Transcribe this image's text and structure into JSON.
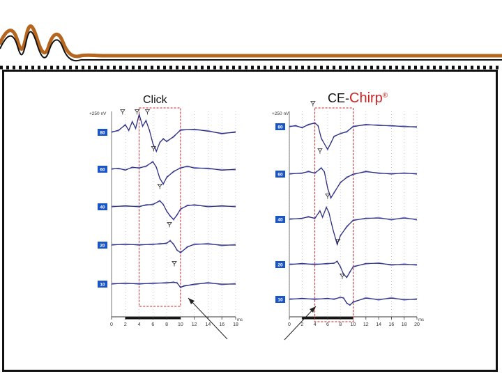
{
  "colors": {
    "accent": "#b5651d",
    "frame": "#111111",
    "trace_a": "#2b2b7a",
    "trace_b": "#7f88d8",
    "highlight": "#cc2222",
    "level_box": "#1a55c8",
    "grid": "#b8b8b8"
  },
  "decoration": {
    "logo": "wave-logo-icon"
  },
  "chart_data": [
    {
      "type": "line",
      "title": "Click",
      "scale_label": "+250 nV",
      "x_unit": "ms",
      "xlim": [
        0,
        18
      ],
      "x_ticks": [
        "0",
        "2",
        "4",
        "6",
        "8",
        "10",
        "12",
        "14",
        "16",
        "18"
      ],
      "levels": [
        "80",
        "60",
        "40",
        "20",
        "10"
      ],
      "highlight_window_ms": [
        4,
        10
      ],
      "series": [
        {
          "level": "80",
          "points": [
            [
              0,
              0
            ],
            [
              1,
              0.1
            ],
            [
              2,
              0.35
            ],
            [
              2.5,
              0.1
            ],
            [
              3,
              0.5
            ],
            [
              3.5,
              0.2
            ],
            [
              4,
              0.85
            ],
            [
              4.5,
              0.3
            ],
            [
              5,
              0.55
            ],
            [
              5.5,
              0.1
            ],
            [
              6,
              -0.55
            ],
            [
              6.5,
              -0.9
            ],
            [
              7,
              -0.5
            ],
            [
              7.5,
              -0.3
            ],
            [
              8,
              -0.45
            ],
            [
              9,
              -0.2
            ],
            [
              10,
              0.1
            ],
            [
              12,
              0.15
            ],
            [
              14,
              0.05
            ],
            [
              16,
              -0.05
            ],
            [
              18,
              0
            ]
          ],
          "peaks_ms": [
            1.6,
            3.7,
            5.2
          ]
        },
        {
          "level": "60",
          "points": [
            [
              0,
              0
            ],
            [
              1,
              0.05
            ],
            [
              2,
              -0.05
            ],
            [
              3,
              0.1
            ],
            [
              4,
              0.05
            ],
            [
              5,
              0.15
            ],
            [
              6,
              0.35
            ],
            [
              6.5,
              0.1
            ],
            [
              7,
              -0.45
            ],
            [
              7.5,
              -0.7
            ],
            [
              8,
              -0.4
            ],
            [
              9,
              -0.1
            ],
            [
              10,
              0.05
            ],
            [
              11,
              0.15
            ],
            [
              12,
              0.05
            ],
            [
              14,
              0.05
            ],
            [
              16,
              -0.05
            ],
            [
              18,
              0
            ]
          ],
          "peaks_ms": [
            6.1
          ]
        },
        {
          "level": "40",
          "points": [
            [
              0,
              0
            ],
            [
              2,
              0.05
            ],
            [
              4,
              0
            ],
            [
              5,
              0.1
            ],
            [
              6,
              0.1
            ],
            [
              7,
              0.3
            ],
            [
              7.5,
              0.1
            ],
            [
              8,
              -0.2
            ],
            [
              8.5,
              -0.45
            ],
            [
              9,
              -0.6
            ],
            [
              9.5,
              -0.4
            ],
            [
              10,
              -0.1
            ],
            [
              11,
              0.05
            ],
            [
              12,
              0.1
            ],
            [
              14,
              0
            ],
            [
              16,
              0.05
            ],
            [
              18,
              0
            ]
          ],
          "peaks_ms": [
            7.0
          ]
        },
        {
          "level": "20",
          "points": [
            [
              0,
              0
            ],
            [
              2,
              0.05
            ],
            [
              4,
              0
            ],
            [
              6,
              0.05
            ],
            [
              7,
              0.05
            ],
            [
              8,
              0.1
            ],
            [
              8.5,
              0.2
            ],
            [
              9,
              0.05
            ],
            [
              9.5,
              -0.25
            ],
            [
              10,
              -0.35
            ],
            [
              11,
              -0.1
            ],
            [
              12,
              0.05
            ],
            [
              14,
              0.05
            ],
            [
              16,
              0
            ],
            [
              18,
              0
            ]
          ],
          "peaks_ms": [
            8.4
          ]
        },
        {
          "level": "10",
          "points": [
            [
              0,
              0
            ],
            [
              2,
              0.05
            ],
            [
              4,
              0
            ],
            [
              6,
              0.05
            ],
            [
              8,
              0.05
            ],
            [
              9,
              0.1
            ],
            [
              9.5,
              0.05
            ],
            [
              10,
              -0.15
            ],
            [
              10.5,
              -0.1
            ],
            [
              12,
              0
            ],
            [
              14,
              0.05
            ],
            [
              16,
              0
            ],
            [
              18,
              0
            ]
          ],
          "peaks_ms": [
            9.1
          ]
        }
      ]
    },
    {
      "type": "line",
      "title": "CE-Chirp®",
      "title_parts": [
        "CE-",
        "Chirp",
        "®"
      ],
      "scale_label": "+250 nV",
      "x_unit": "ms",
      "xlim": [
        0,
        20
      ],
      "x_ticks": [
        "0",
        "2",
        "4",
        "6",
        "8",
        "10",
        "12",
        "14",
        "16",
        "18",
        "20"
      ],
      "levels": [
        "80",
        "60",
        "40",
        "20",
        "10"
      ],
      "highlight_window_ms": [
        4,
        10
      ],
      "series": [
        {
          "level": "80",
          "points": [
            [
              0,
              0
            ],
            [
              1,
              0.05
            ],
            [
              2,
              -0.05
            ],
            [
              3,
              0.1
            ],
            [
              4,
              0.15
            ],
            [
              4.5,
              0.05
            ],
            [
              5,
              -0.5
            ],
            [
              6,
              -0.95
            ],
            [
              6.5,
              -0.7
            ],
            [
              7,
              -0.4
            ],
            [
              8,
              -0.3
            ],
            [
              9,
              -0.2
            ],
            [
              10,
              0
            ],
            [
              12,
              0.1
            ],
            [
              14,
              0.05
            ],
            [
              16,
              0.05
            ],
            [
              18,
              0
            ],
            [
              20,
              0
            ]
          ],
          "peaks_ms": [
            3.7
          ]
        },
        {
          "level": "60",
          "points": [
            [
              0,
              0
            ],
            [
              2,
              0.05
            ],
            [
              3,
              0.1
            ],
            [
              4,
              0.05
            ],
            [
              5,
              0.25
            ],
            [
              5.5,
              0.1
            ],
            [
              6,
              -0.6
            ],
            [
              6.5,
              -1.0
            ],
            [
              7,
              -0.8
            ],
            [
              8,
              -0.35
            ],
            [
              9,
              -0.15
            ],
            [
              10,
              0
            ],
            [
              12,
              0.1
            ],
            [
              14,
              0.05
            ],
            [
              16,
              0
            ],
            [
              18,
              0.05
            ],
            [
              20,
              0
            ]
          ],
          "peaks_ms": [
            4.8
          ]
        },
        {
          "level": "40",
          "points": [
            [
              0,
              0
            ],
            [
              2,
              0.05
            ],
            [
              3,
              0.1
            ],
            [
              4,
              0.05
            ],
            [
              4.8,
              0.35
            ],
            [
              5.2,
              0.1
            ],
            [
              5.8,
              0.5
            ],
            [
              6.2,
              0.3
            ],
            [
              6.8,
              -0.4
            ],
            [
              7.5,
              -1.05
            ],
            [
              8,
              -0.7
            ],
            [
              9,
              -0.3
            ],
            [
              10,
              -0.05
            ],
            [
              12,
              0.05
            ],
            [
              14,
              0.05
            ],
            [
              16,
              0
            ],
            [
              18,
              0.05
            ],
            [
              20,
              0
            ]
          ],
          "peaks_ms": [
            6.0
          ]
        },
        {
          "level": "20",
          "points": [
            [
              0,
              0
            ],
            [
              2,
              0.05
            ],
            [
              4,
              0
            ],
            [
              6,
              0.05
            ],
            [
              7,
              0.05
            ],
            [
              7.5,
              0.15
            ],
            [
              8,
              -0.1
            ],
            [
              8.5,
              -0.4
            ],
            [
              9,
              -0.55
            ],
            [
              9.5,
              -0.3
            ],
            [
              10,
              -0.1
            ],
            [
              12,
              0.05
            ],
            [
              14,
              0.05
            ],
            [
              16,
              0
            ],
            [
              18,
              0
            ],
            [
              20,
              0
            ]
          ],
          "peaks_ms": [
            7.6
          ]
        },
        {
          "level": "10",
          "points": [
            [
              0,
              0
            ],
            [
              2,
              0.05
            ],
            [
              4,
              0
            ],
            [
              6,
              0.05
            ],
            [
              7,
              0
            ],
            [
              8,
              0.1
            ],
            [
              8.5,
              0.05
            ],
            [
              9,
              -0.15
            ],
            [
              9.5,
              -0.25
            ],
            [
              10,
              -0.1
            ],
            [
              12,
              0.05
            ],
            [
              14,
              0
            ],
            [
              16,
              0.05
            ],
            [
              18,
              0
            ],
            [
              20,
              0
            ]
          ],
          "peaks_ms": [
            8.3
          ]
        }
      ]
    }
  ]
}
